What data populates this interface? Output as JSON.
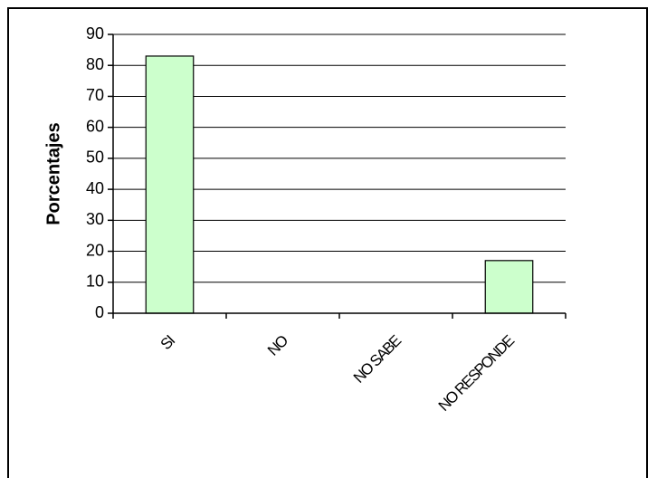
{
  "chart_data": {
    "type": "bar",
    "title": "",
    "xlabel": "",
    "ylabel": "Porcentajes",
    "categories": [
      "SI",
      "NO",
      "NO SABE",
      "NO RESPONDE"
    ],
    "values": [
      83,
      0,
      0,
      17
    ],
    "ylim": [
      0,
      90
    ],
    "yticks": [
      "0",
      "10",
      "20",
      "30",
      "40",
      "50",
      "60",
      "70",
      "80",
      "90"
    ],
    "grid": true,
    "colors": {
      "bar_fill": "#ccffcc",
      "bar_stroke": "#000000",
      "grid": "#000000"
    }
  }
}
